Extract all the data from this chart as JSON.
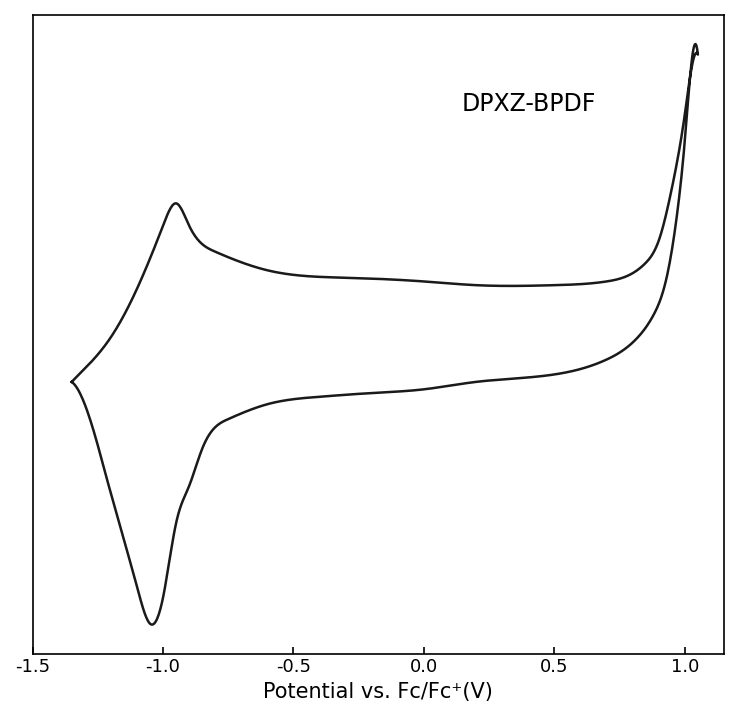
{
  "title_label": "DPXZ-BPDF",
  "xlabel": "Potential vs. Fc/Fc⁺(V)",
  "xlim": [
    -1.5,
    1.15
  ],
  "ylim_relative": [
    -1.0,
    1.0
  ],
  "xticks": [
    -1.5,
    -1.0,
    -0.5,
    0.0,
    0.5,
    1.0
  ],
  "xtick_labels": [
    "-1.5",
    "-1.0",
    "-0.5",
    "0.0",
    "0.5",
    "1.0"
  ],
  "line_color": "#1a1a1a",
  "line_width": 1.8,
  "background_color": "#ffffff",
  "label_fontsize": 15,
  "tick_fontsize": 13,
  "annotation_fontsize": 17
}
